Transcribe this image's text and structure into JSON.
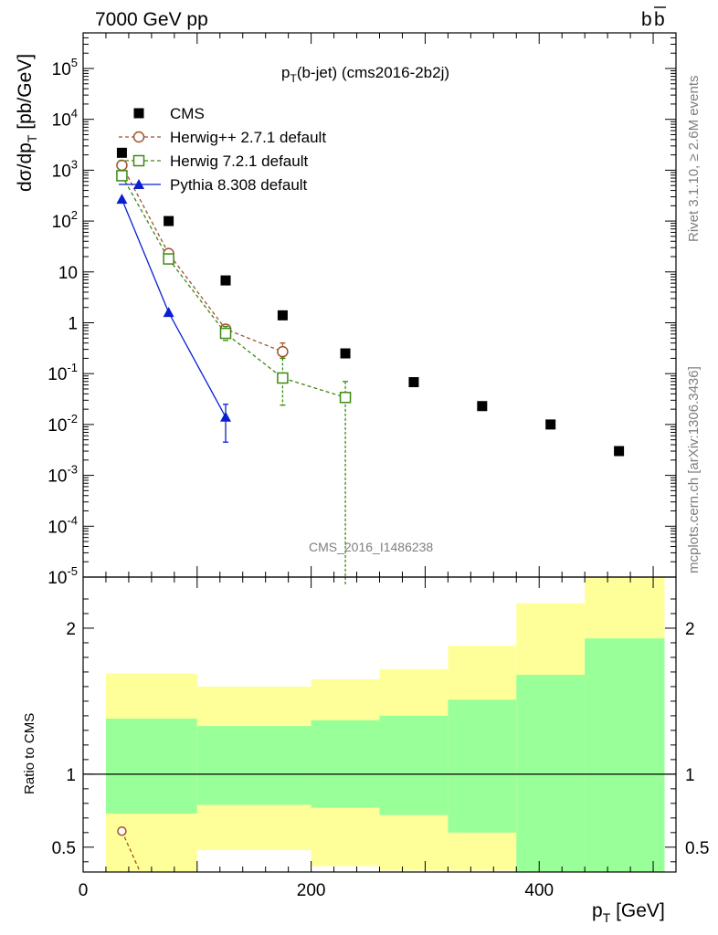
{
  "header": {
    "left": "7000 GeV pp",
    "right_base": "b",
    "right_bar": "b"
  },
  "side": {
    "rivet": "Rivet 3.1.10, ≥ 2.6M events",
    "mcplots": "mcplots.cern.ch [arXiv:1306.3436]"
  },
  "chart_data": {
    "type": "scatter",
    "title": {
      "base": "p",
      "sub": "T",
      "rest": "(b-jet) (cms2016-2b2j)"
    },
    "watermark": "CMS_2016_I1486238",
    "ylabel": {
      "pre": "dσ/dp",
      "sub": "T",
      "post": " [pb/GeV]"
    },
    "xlabel": {
      "base": "p",
      "sub": "T",
      "rest": " [GeV]"
    },
    "ratio_ylabel": "Ratio to CMS",
    "xlim": [
      0,
      520
    ],
    "ylim_log": [
      -5,
      5.7
    ],
    "ratio_ylim": [
      0.33,
      2.35
    ],
    "x_ticks": [
      "0",
      "200",
      "400"
    ],
    "y_ticks": [
      "10^5",
      "10^4",
      "10^3",
      "10^2",
      "10",
      "1",
      "10^-1",
      "10^-2",
      "10^-3",
      "10^-4",
      "10^-5"
    ],
    "ratio_ticks": [
      "2",
      "1",
      "0.5"
    ],
    "legend_position": "top-left",
    "series": [
      {
        "name": "CMS",
        "marker": "filled-square",
        "color": "#000000",
        "x": [
          34,
          75,
          125,
          175,
          230,
          290,
          350,
          410,
          470
        ],
        "y": [
          2200,
          100,
          6.8,
          1.4,
          0.25,
          0.068,
          0.023,
          0.01,
          0.003
        ]
      },
      {
        "name": "Herwig++ 2.7.1 default",
        "marker": "open-circle",
        "line": "dashed",
        "color": "#a0522d",
        "x": [
          34,
          75,
          125,
          175
        ],
        "y": [
          1250,
          23,
          0.75,
          0.27
        ],
        "err_up": [
          null,
          null,
          null,
          0.4
        ],
        "err_dn": [
          null,
          null,
          null,
          0.2
        ]
      },
      {
        "name": "Herwig 7.2.1 default",
        "marker": "open-square",
        "line": "dashed",
        "color": "#3a8a10",
        "x": [
          34,
          75,
          125,
          175,
          230
        ],
        "y": [
          780,
          18,
          0.62,
          0.082,
          0.034
        ],
        "err_up": [
          null,
          null,
          0.85,
          0.2,
          0.07
        ],
        "err_dn": [
          null,
          null,
          0.45,
          0.024,
          1e-06
        ]
      },
      {
        "name": "Pythia 8.308 default",
        "marker": "filled-triangle",
        "line": "solid",
        "color": "#0a1fd0",
        "x": [
          34,
          75,
          125
        ],
        "y": [
          270,
          1.6,
          0.014
        ],
        "err_up": [
          null,
          null,
          0.025
        ],
        "err_dn": [
          null,
          null,
          0.0045
        ]
      }
    ],
    "ratio_bands": [
      {
        "x0": 20,
        "x1": 100,
        "green": [
          0.73,
          1.38
        ],
        "yellow": [
          0.33,
          1.69
        ]
      },
      {
        "x0": 100,
        "x1": 200,
        "green": [
          0.79,
          1.33
        ],
        "yellow": [
          0.48,
          1.6
        ]
      },
      {
        "x0": 200,
        "x1": 260,
        "green": [
          0.77,
          1.37
        ],
        "yellow": [
          0.37,
          1.65
        ]
      },
      {
        "x0": 260,
        "x1": 320,
        "green": [
          0.72,
          1.4
        ],
        "yellow": [
          0.34,
          1.72
        ]
      },
      {
        "x0": 320,
        "x1": 380,
        "green": [
          0.6,
          1.51
        ],
        "yellow": [
          0.34,
          1.88
        ]
      },
      {
        "x0": 380,
        "x1": 440,
        "green": [
          0.33,
          1.68
        ],
        "yellow": [
          0.33,
          2.17
        ]
      },
      {
        "x0": 440,
        "x1": 510,
        "green": [
          0.33,
          1.93
        ],
        "yellow": [
          0.33,
          2.38
        ]
      }
    ],
    "ratio_series": [
      {
        "name": "Herwig++ 2.7.1 default",
        "color": "#a0522d",
        "x": [
          34,
          50
        ],
        "y": [
          0.61,
          0.33
        ]
      }
    ]
  }
}
